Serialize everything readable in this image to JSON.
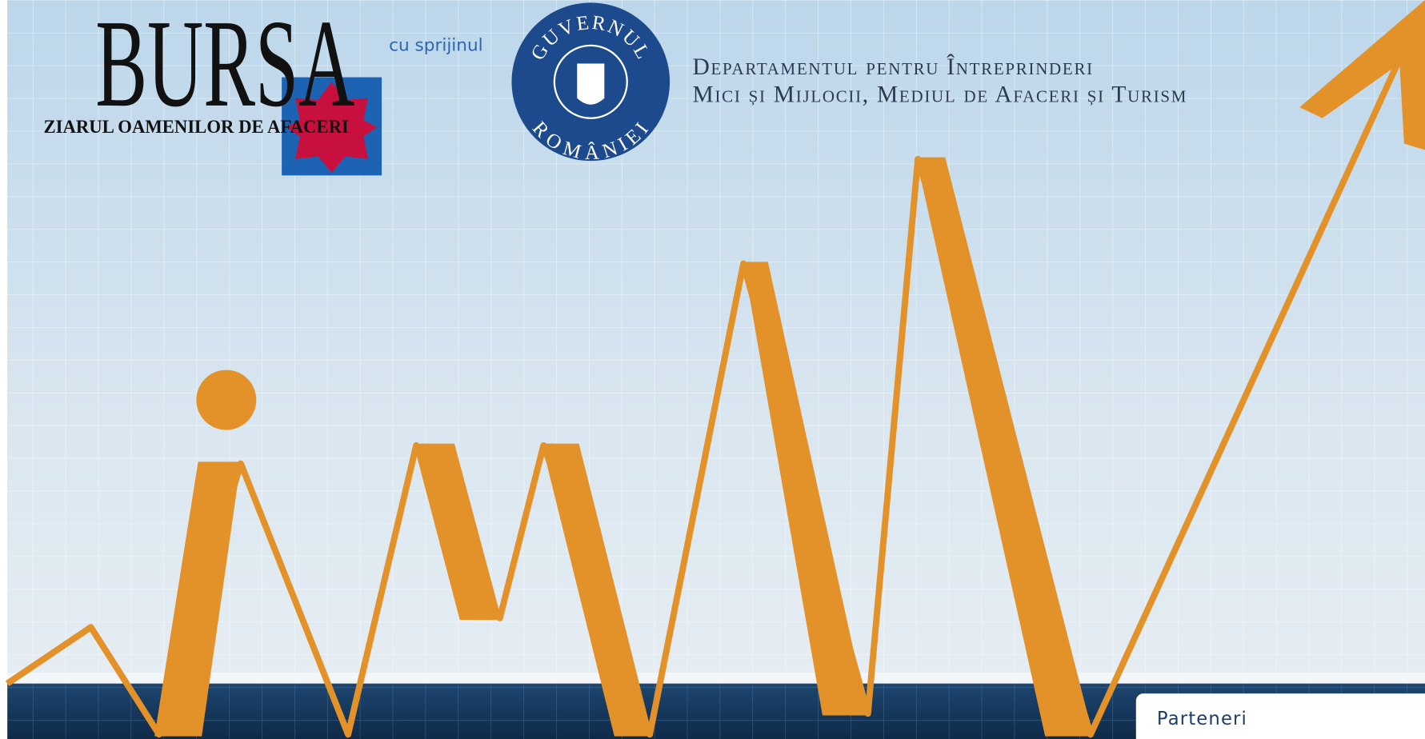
{
  "header": {
    "logo": "BURSA",
    "tagline": "ZIARUL OAMENILOR DE AFACERI",
    "support_text": "cu sprijinul",
    "emblem_top": "GUVERNUL",
    "emblem_bottom": "ROMÂNIEI",
    "department_line1": "Departamentul pentru Întreprinderi",
    "department_line2": "Mici și Mijlocii, Mediul de Afaceri și Turism"
  },
  "sidebar": {
    "title": "Parteneri"
  }
}
